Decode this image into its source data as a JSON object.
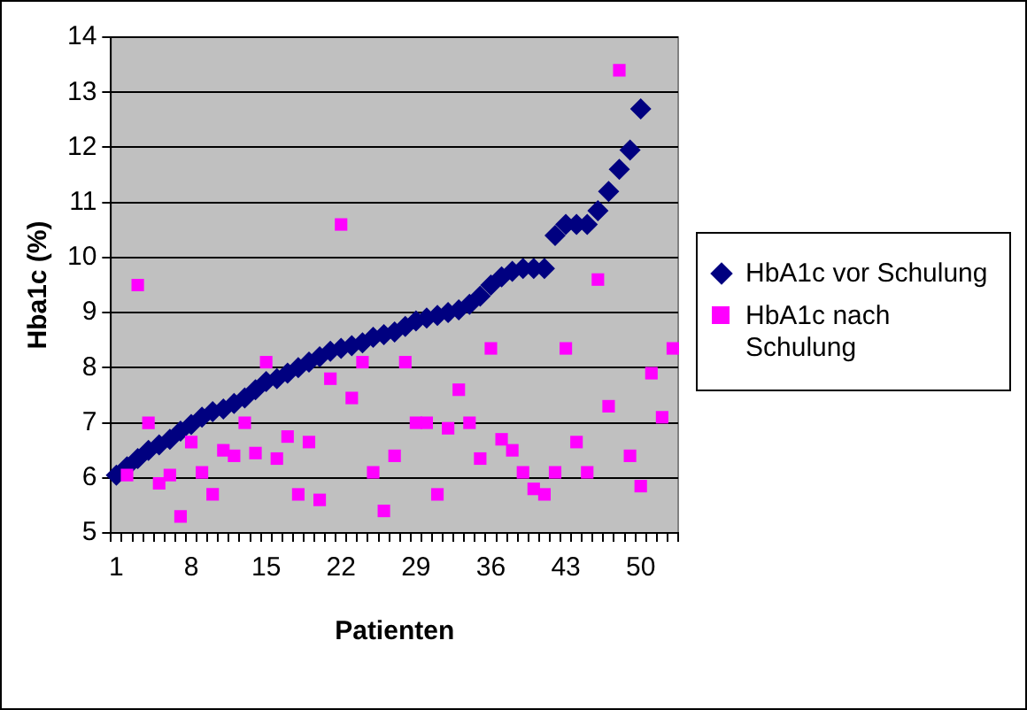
{
  "chart_data": {
    "type": "scatter",
    "xlabel": "Patienten",
    "ylabel": "Hba1c (%)",
    "categories": [
      "1",
      null,
      null,
      null,
      null,
      null,
      null,
      "8",
      null,
      null,
      null,
      null,
      null,
      null,
      "15",
      null,
      null,
      null,
      null,
      null,
      null,
      "22",
      null,
      null,
      null,
      null,
      null,
      null,
      "29",
      null,
      null,
      null,
      null,
      null,
      null,
      "36",
      null,
      null,
      null,
      null,
      null,
      null,
      "43",
      null,
      null,
      null,
      null,
      null,
      null,
      "50",
      null,
      null,
      null
    ],
    "series": [
      {
        "name": "HbA1c vor Schulung",
        "color": "#000080",
        "marker": "diamond",
        "values": [
          6.05,
          6.2,
          6.35,
          6.5,
          6.6,
          6.7,
          6.85,
          6.97,
          7.1,
          7.2,
          7.25,
          7.35,
          7.45,
          7.6,
          7.75,
          7.8,
          7.9,
          8.0,
          8.1,
          8.2,
          8.3,
          8.35,
          8.4,
          8.45,
          8.55,
          8.6,
          8.65,
          8.75,
          8.85,
          8.9,
          8.95,
          9.0,
          9.05,
          9.15,
          9.3,
          9.5,
          9.65,
          9.75,
          9.8,
          9.8,
          9.8,
          10.4,
          10.6,
          10.6,
          10.6,
          10.85,
          11.2,
          11.6,
          11.95,
          12.7,
          null,
          null,
          null
        ]
      },
      {
        "name": "HbA1c nach Schulung",
        "color": "#ff00ff",
        "marker": "square",
        "values": [
          null,
          6.05,
          9.5,
          7.0,
          5.9,
          6.05,
          5.3,
          6.65,
          6.1,
          5.7,
          6.5,
          6.4,
          7.0,
          6.45,
          8.1,
          6.35,
          6.75,
          5.7,
          6.65,
          5.6,
          7.8,
          10.6,
          7.45,
          8.1,
          6.1,
          5.4,
          6.4,
          8.1,
          7.0,
          7.0,
          5.7,
          6.9,
          7.6,
          7.0,
          6.35,
          8.35,
          6.7,
          6.5,
          6.1,
          5.8,
          5.7,
          6.1,
          8.35,
          6.65,
          6.1,
          9.6,
          7.3,
          13.4,
          6.4,
          5.85,
          7.9,
          7.1,
          8.35
        ]
      }
    ],
    "ylim": [
      5,
      14
    ],
    "yticks": [
      5,
      6,
      7,
      8,
      9,
      10,
      11,
      12,
      13,
      14
    ],
    "grid": "y",
    "legend": "right"
  }
}
